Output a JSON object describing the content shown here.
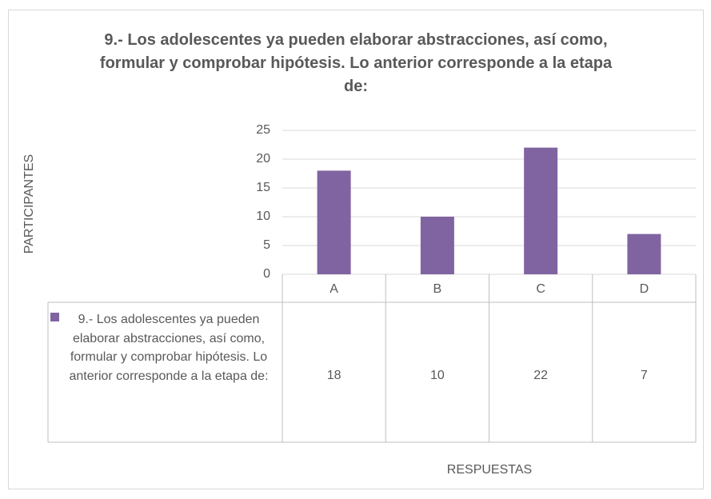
{
  "chart_data": {
    "type": "bar",
    "title": "9.- Los adolescentes ya pueden elaborar abstracciones, así como, formular y comprobar hipótesis. Lo anterior corresponde a la etapa de:",
    "categories": [
      "A",
      "B",
      "C",
      "D"
    ],
    "series": [
      {
        "name": "9.- Los adolescentes ya pueden elaborar abstracciones, así como, formular y comprobar hipótesis. Lo anterior corresponde a la etapa de:",
        "color": "#8064a2",
        "values": [
          18,
          10,
          22,
          7
        ]
      }
    ],
    "ylim": [
      0,
      25
    ],
    "yticks": [
      0,
      5,
      10,
      15,
      20,
      25
    ],
    "grid": true,
    "y_label": "PARTICIPANTES",
    "x_label": "RESPUESTAS",
    "data_table": true
  }
}
